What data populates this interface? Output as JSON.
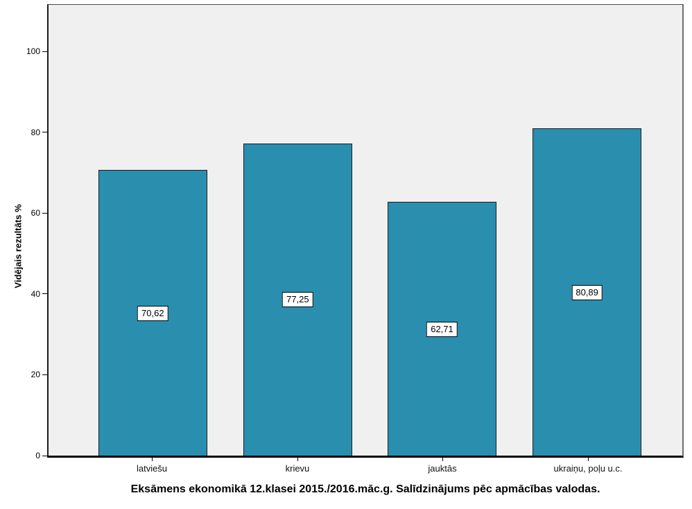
{
  "chart_data": {
    "type": "bar",
    "title": "Eksāmens ekonomikā 12.klasei 2015./2016.māc.g. Salīdzinājums pēc apmācības valodas.",
    "ylabel": "Vidējais rezultāts %",
    "xlabel": "",
    "categories": [
      "latviešu",
      "krievu",
      "jauktās",
      "ukraiņu, poļu u.c."
    ],
    "values": [
      70.62,
      77.25,
      62.71,
      80.89
    ],
    "value_labels": [
      "70,62",
      "77,25",
      "62,71",
      "80,89"
    ],
    "yticks": [
      0,
      20,
      40,
      60,
      80,
      100
    ],
    "ylim": [
      0,
      111.5
    ],
    "grid": false,
    "legend": "none",
    "colors": {
      "bar_fill": "#2A8EAF",
      "bar_border": "#1C1C1C",
      "plot_background": "#F0F0F0",
      "page_background": "#FFFFFF",
      "axis_line": "#000000",
      "label_box_background": "#FFFFFF",
      "label_box_border": "#000000",
      "text": "#000000"
    }
  }
}
